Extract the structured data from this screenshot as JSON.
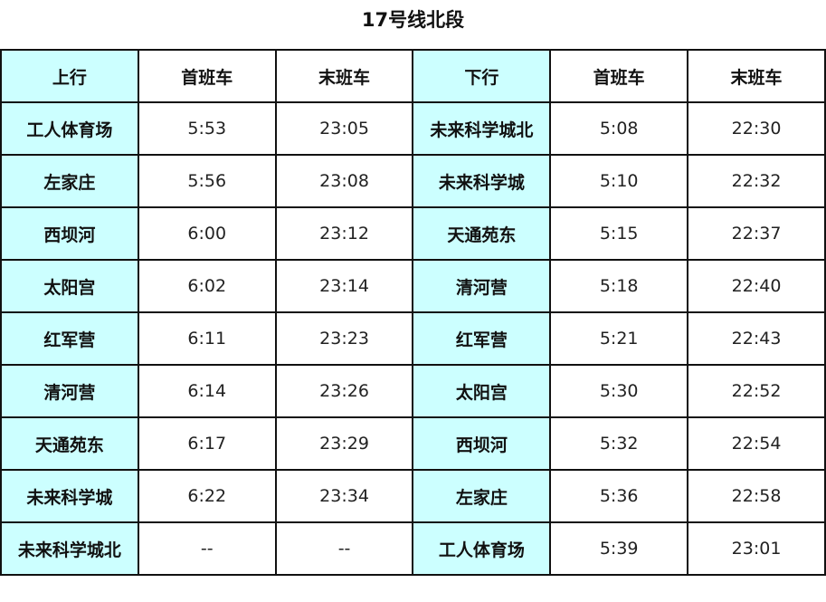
{
  "title": "17号线北段",
  "colors": {
    "station_bg": "#ccffff",
    "border": "#111111"
  },
  "headers": [
    "上行",
    "首班车",
    "末班车",
    "下行",
    "首班车",
    "末班车"
  ],
  "rows": [
    {
      "up": "工人体育场",
      "up_first": "5:53",
      "up_last": "23:05",
      "down": "未来科学城北",
      "down_first": "5:08",
      "down_last": "22:30"
    },
    {
      "up": "左家庄",
      "up_first": "5:56",
      "up_last": "23:08",
      "down": "未来科学城",
      "down_first": "5:10",
      "down_last": "22:32"
    },
    {
      "up": "西坝河",
      "up_first": "6:00",
      "up_last": "23:12",
      "down": "天通苑东",
      "down_first": "5:15",
      "down_last": "22:37"
    },
    {
      "up": "太阳宫",
      "up_first": "6:02",
      "up_last": "23:14",
      "down": "清河营",
      "down_first": "5:18",
      "down_last": "22:40"
    },
    {
      "up": "红军营",
      "up_first": "6:11",
      "up_last": "23:23",
      "down": "红军营",
      "down_first": "5:21",
      "down_last": "22:43"
    },
    {
      "up": "清河营",
      "up_first": "6:14",
      "up_last": "23:26",
      "down": "太阳宫",
      "down_first": "5:30",
      "down_last": "22:52"
    },
    {
      "up": "天通苑东",
      "up_first": "6:17",
      "up_last": "23:29",
      "down": "西坝河",
      "down_first": "5:32",
      "down_last": "22:54"
    },
    {
      "up": "未来科学城",
      "up_first": "6:22",
      "up_last": "23:34",
      "down": "左家庄",
      "down_first": "5:36",
      "down_last": "22:58"
    },
    {
      "up": "未来科学城北",
      "up_first": "--",
      "up_last": "--",
      "down": "工人体育场",
      "down_first": "5:39",
      "down_last": "23:01"
    }
  ]
}
